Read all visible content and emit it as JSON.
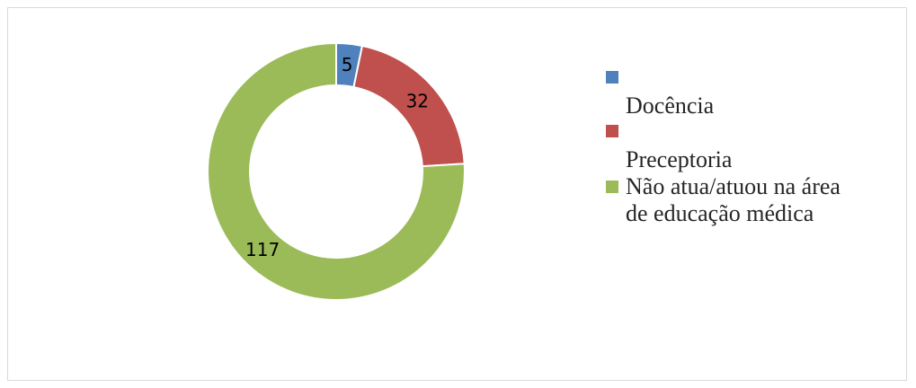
{
  "chart_data": {
    "type": "pie",
    "variant": "donut",
    "categories": [
      "Docência",
      "Preceptoria",
      "Não atua/atuou na área de educação médica"
    ],
    "values": [
      5,
      32,
      117
    ],
    "colors": [
      "#4f81bd",
      "#c0504d",
      "#9bbb59"
    ],
    "data_labels": [
      "5",
      "32",
      "117"
    ],
    "legend": "right"
  }
}
